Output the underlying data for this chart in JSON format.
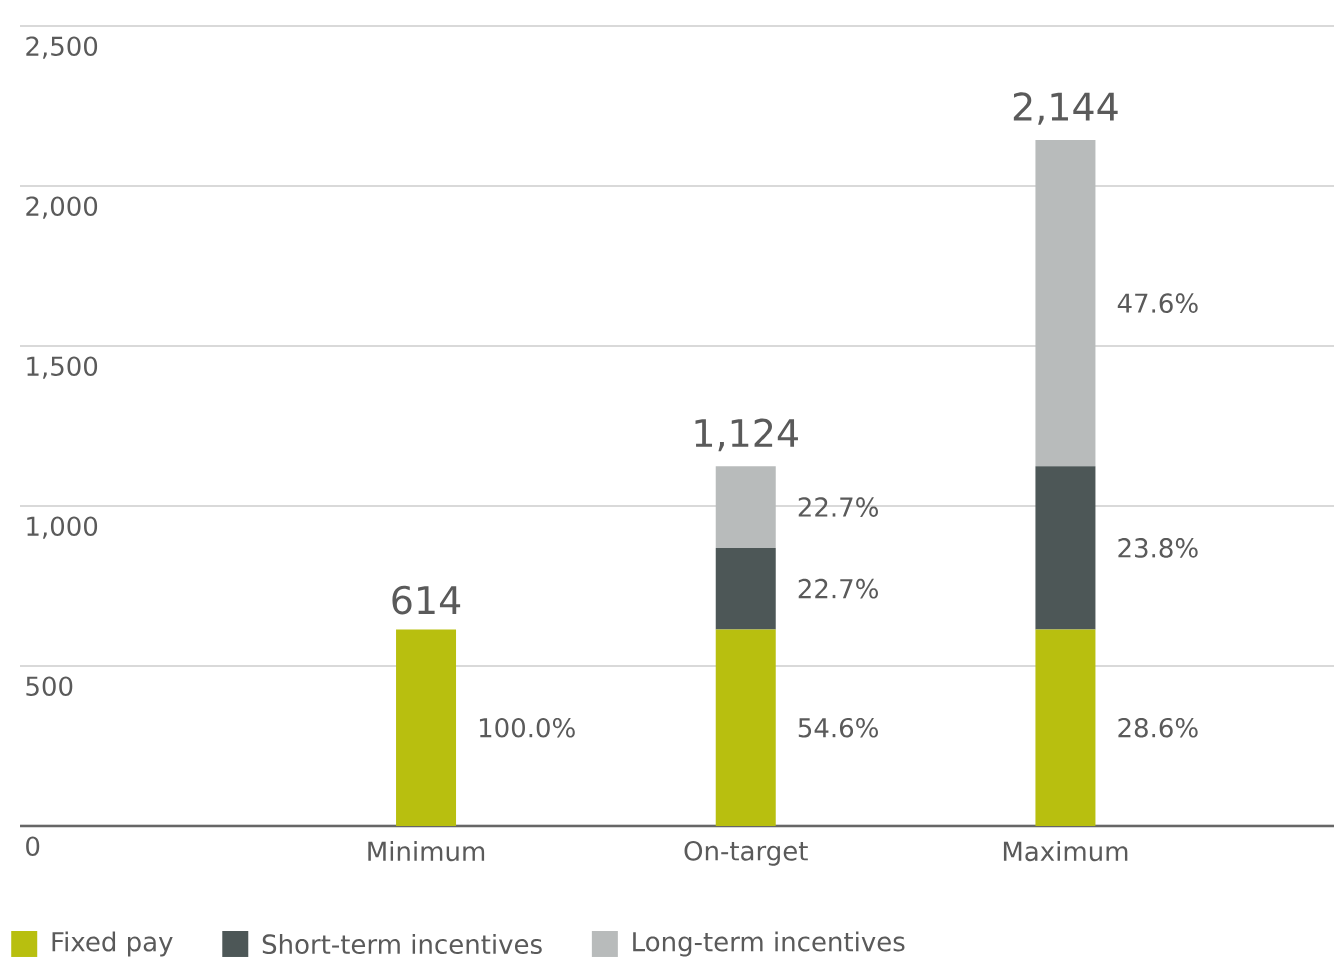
{
  "chart_data": {
    "type": "bar",
    "stacked": true,
    "categories": [
      "Minimum",
      "On-target",
      "Maximum"
    ],
    "series": [
      {
        "name": "Fixed pay",
        "color": "#b8bf0f",
        "values": [
          614,
          614,
          614
        ]
      },
      {
        "name": "Short-term incentives",
        "color": "#4d5757",
        "values": [
          0,
          255,
          510
        ]
      },
      {
        "name": "Long-term incentives",
        "color": "#b8bbbb",
        "values": [
          0,
          255,
          1020
        ]
      }
    ],
    "annotations": [
      "100.0%",
      "54.6%",
      "22.7%",
      "22.7%",
      "28.6%",
      "23.8%",
      "47.6%"
    ],
    "totals": [
      "614",
      "1,124",
      "2,144"
    ],
    "ylim": [
      0,
      2500
    ],
    "yticks": [
      0,
      500,
      {
        "value": 1000,
        "label": "1,000"
      },
      {
        "value": 1500,
        "label": "1,500"
      },
      {
        "value": 2000,
        "label": "2,000"
      },
      {
        "value": 2500,
        "label": "2,500"
      }
    ],
    "grid": "y",
    "legend": "bottom"
  }
}
